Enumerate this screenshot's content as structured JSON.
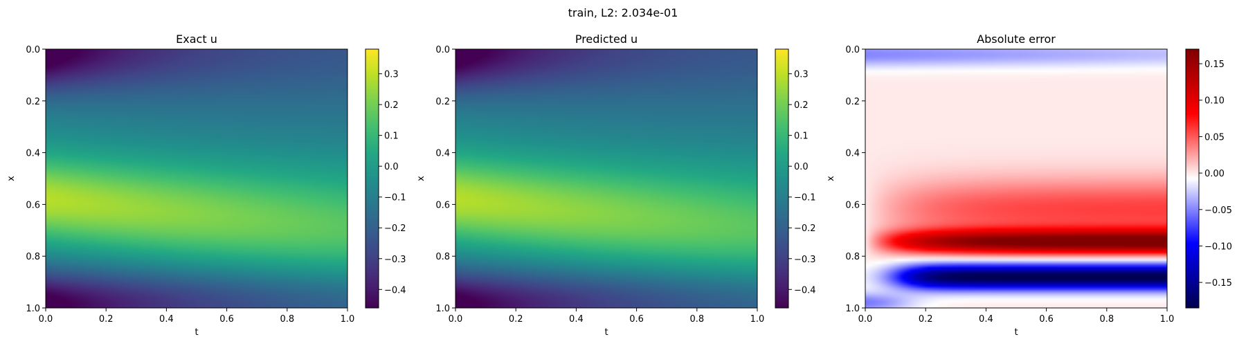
{
  "figure": {
    "suptitle": "train, L2: 2.034e-01"
  },
  "chart_data": [
    {
      "type": "heatmap",
      "title": "Exact u",
      "xlabel": "t",
      "ylabel": "x",
      "xlim": [
        0.0,
        1.0
      ],
      "ylim": [
        1.0,
        0.0
      ],
      "x_ticks": [
        "0.0",
        "0.2",
        "0.4",
        "0.6",
        "0.8",
        "1.0"
      ],
      "y_ticks": [
        "0.0",
        "0.2",
        "0.4",
        "0.6",
        "0.8",
        "1.0"
      ],
      "colormap": "viridis",
      "vmin": -0.46,
      "vmax": 0.38,
      "colorbar_ticks": [
        "0.3",
        "0.2",
        "0.1",
        "0.0",
        "−0.1",
        "−0.2",
        "−0.3",
        "−0.4"
      ],
      "colorbar_values": [
        0.3,
        0.2,
        0.1,
        0.0,
        -0.1,
        -0.2,
        -0.3,
        -0.4
      ]
    },
    {
      "type": "heatmap",
      "title": "Predicted u",
      "xlabel": "t",
      "ylabel": "x",
      "xlim": [
        0.0,
        1.0
      ],
      "ylim": [
        1.0,
        0.0
      ],
      "x_ticks": [
        "0.0",
        "0.2",
        "0.4",
        "0.6",
        "0.8",
        "1.0"
      ],
      "y_ticks": [
        "0.0",
        "0.2",
        "0.4",
        "0.6",
        "0.8",
        "1.0"
      ],
      "colormap": "viridis",
      "vmin": -0.46,
      "vmax": 0.38,
      "colorbar_ticks": [
        "0.3",
        "0.2",
        "0.1",
        "0.0",
        "−0.1",
        "−0.2",
        "−0.3",
        "−0.4"
      ],
      "colorbar_values": [
        0.3,
        0.2,
        0.1,
        0.0,
        -0.1,
        -0.2,
        -0.3,
        -0.4
      ]
    },
    {
      "type": "heatmap",
      "title": "Absolute error",
      "xlabel": "t",
      "ylabel": "x",
      "xlim": [
        0.0,
        1.0
      ],
      "ylim": [
        1.0,
        0.0
      ],
      "x_ticks": [
        "0.0",
        "0.2",
        "0.4",
        "0.6",
        "0.8",
        "1.0"
      ],
      "y_ticks": [
        "0.0",
        "0.2",
        "0.4",
        "0.6",
        "0.8",
        "1.0"
      ],
      "colormap": "seismic",
      "vmin": -0.185,
      "vmax": 0.17,
      "colorbar_ticks": [
        "0.15",
        "0.10",
        "0.05",
        "0.00",
        "−0.05",
        "−0.10",
        "−0.15"
      ],
      "colorbar_values": [
        0.15,
        0.1,
        0.05,
        0.0,
        -0.05,
        -0.1,
        -0.15
      ]
    }
  ]
}
